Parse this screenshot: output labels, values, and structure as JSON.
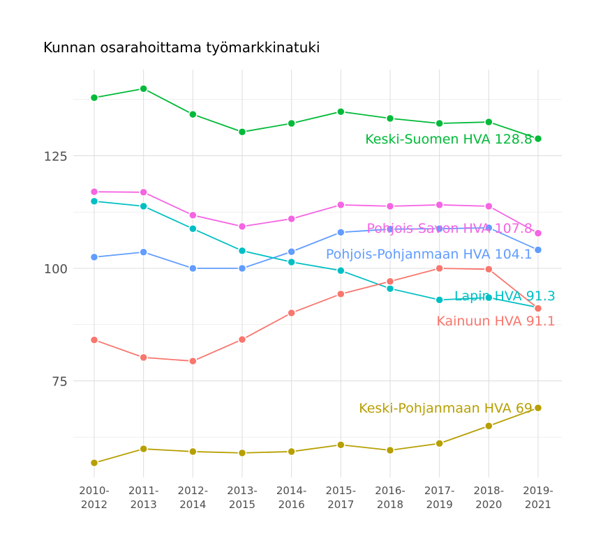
{
  "chart_data": {
    "type": "line",
    "title": "Kunnan osarahoittama työmarkkinatuki",
    "xlabel": "",
    "ylabel": "",
    "categories": [
      "2010-\n2012",
      "2011-\n2013",
      "2012-\n2014",
      "2013-\n2015",
      "2014-\n2016",
      "2015-\n2017",
      "2016-\n2018",
      "2017-\n2019",
      "2018-\n2020",
      "2019-\n2021"
    ],
    "ylim": [
      52.5,
      143.5
    ],
    "yticks": [
      75,
      100,
      125
    ],
    "grid": true,
    "legend": "none (direct labels at line ends)",
    "series": [
      {
        "name": "Keski-Suomen HVA",
        "end_label": "Keski-Suomen HVA 128.8",
        "color": "#00BA38",
        "values": [
          137.9,
          139.9,
          134.2,
          130.3,
          132.2,
          134.8,
          133.3,
          132.2,
          132.5,
          128.8
        ]
      },
      {
        "name": "Pohjois-Savon HVA",
        "end_label": "Pohjois-Savon HVA 107.8",
        "color": "#F564E3",
        "values": [
          117.0,
          116.9,
          111.8,
          109.3,
          111.0,
          114.1,
          113.8,
          114.1,
          113.8,
          107.8
        ]
      },
      {
        "name": "Pohjois-Pohjanmaan HVA",
        "end_label": "Pohjois-Pohjanmaan HVA 104.1",
        "color": "#619CFF",
        "values": [
          102.5,
          103.6,
          100.0,
          100.0,
          103.7,
          108.0,
          108.7,
          108.8,
          109.0,
          104.1
        ]
      },
      {
        "name": "Lapin HVA",
        "end_label": "Lapin HVA 91.3",
        "color": "#00BFC4",
        "values": [
          114.9,
          113.8,
          108.8,
          103.9,
          101.4,
          99.5,
          95.5,
          93.0,
          93.5,
          91.3
        ]
      },
      {
        "name": "Kainuun HVA",
        "end_label": "Kainuun HVA 91.1",
        "color": "#F8766D",
        "values": [
          84.1,
          80.2,
          79.4,
          84.2,
          90.1,
          94.3,
          97.1,
          100.0,
          99.8,
          91.1
        ]
      },
      {
        "name": "Keski-Pohjanmaan HVA",
        "end_label": "Keski-Pohjanmaan HVA 69",
        "color": "#B79F00",
        "values": [
          56.8,
          59.9,
          59.3,
          59.0,
          59.3,
          60.8,
          59.6,
          61.1,
          65.0,
          69.0
        ]
      }
    ]
  }
}
